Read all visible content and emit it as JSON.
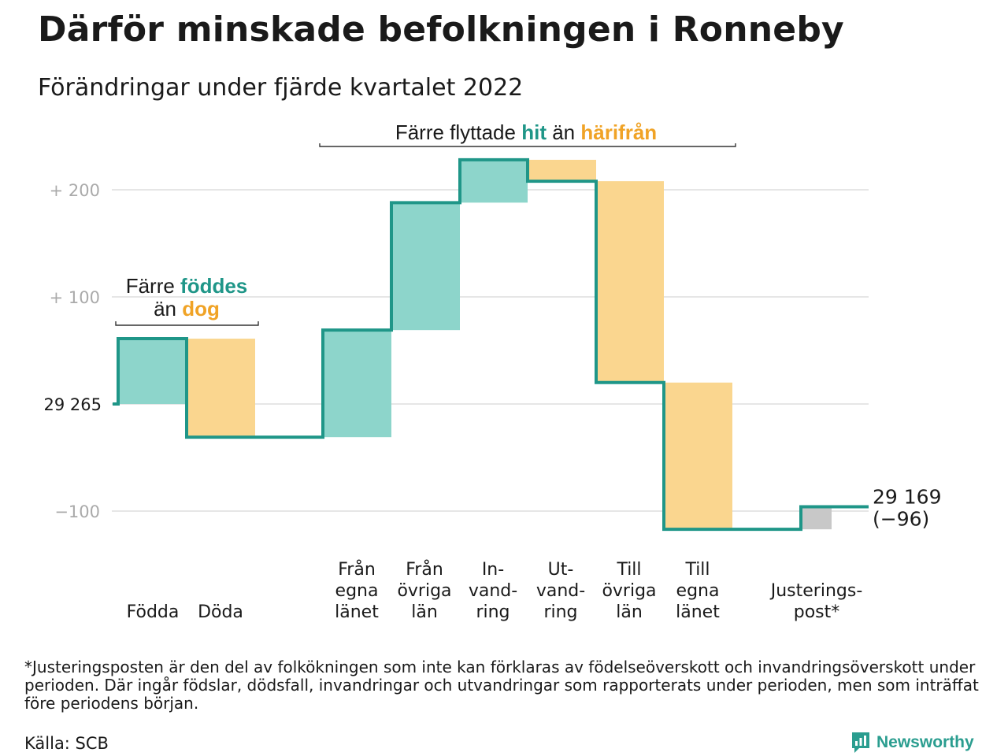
{
  "title": "Därför minskade befolkningen i Ronneby",
  "subtitle": "Förändringar under fjärde kvartalet 2022",
  "chart_data": {
    "type": "waterfall",
    "start_value": 29265,
    "start_label": "29 265",
    "end_value": 29169,
    "end_label": "29 169",
    "end_change_label": "(−96)",
    "ylim": [
      -120,
      230
    ],
    "grid": true,
    "y_ticks": [
      {
        "value": 200,
        "label": "+ 200"
      },
      {
        "value": 100,
        "label": "+ 100"
      },
      {
        "value": 0,
        "label": "29 265"
      },
      {
        "value": -100,
        "label": "−100"
      }
    ],
    "steps": [
      {
        "label_lines": [
          "Födda"
        ],
        "change": 61,
        "kind": "in"
      },
      {
        "label_lines": [
          "Döda"
        ],
        "change": -92,
        "kind": "out"
      },
      {
        "label_lines": [
          "Från",
          "egna",
          "länet"
        ],
        "change": 100,
        "kind": "in"
      },
      {
        "label_lines": [
          "Från",
          "övriga",
          "län"
        ],
        "change": 119,
        "kind": "in"
      },
      {
        "label_lines": [
          "In-",
          "vand-",
          "ring"
        ],
        "change": 40,
        "kind": "in"
      },
      {
        "label_lines": [
          "Ut-",
          "vand-",
          "ring"
        ],
        "change": -20,
        "kind": "out"
      },
      {
        "label_lines": [
          "Till",
          "övriga",
          "län"
        ],
        "change": -188,
        "kind": "out"
      },
      {
        "label_lines": [
          "Till",
          "egna",
          "länet"
        ],
        "change": -137,
        "kind": "out"
      },
      {
        "label_lines": [
          "Justerings-",
          "post*"
        ],
        "change": 21,
        "kind": "adjust"
      }
    ],
    "annotations": [
      {
        "parts": [
          {
            "text": "Färre ",
            "style": "plain"
          },
          {
            "text": "föddes",
            "style": "in"
          }
        ],
        "parts2": [
          {
            "text": "än ",
            "style": "plain"
          },
          {
            "text": "dog",
            "style": "out"
          }
        ]
      },
      {
        "parts": [
          {
            "text": "Färre flyttade ",
            "style": "plain"
          },
          {
            "text": "hit",
            "style": "in"
          },
          {
            "text": " än ",
            "style": "plain"
          },
          {
            "text": "härifrån",
            "style": "out"
          }
        ]
      }
    ]
  },
  "colors": {
    "in_fill": "#8dd5cb",
    "out_fill": "#fad68f",
    "adjust_fill": "#c8c8c8",
    "line": "#1f9688",
    "in_text": "#1f9688",
    "out_text": "#f0a326",
    "grid": "#e6e6e6",
    "tick_text": "#aaaaaa"
  },
  "footnote": "*Justeringsposten är den del av folkökningen som inte kan förklaras av födelseöverskott och invandringsöverskott under perioden. Där ingår födslar, dödsfall, invandringar och utvandringar som rapporterats under perioden, men som inträffat före periodens början.",
  "source": "Källa: SCB",
  "brand": {
    "name": "Newsworthy",
    "icon": "newsworthy-logo-icon"
  }
}
